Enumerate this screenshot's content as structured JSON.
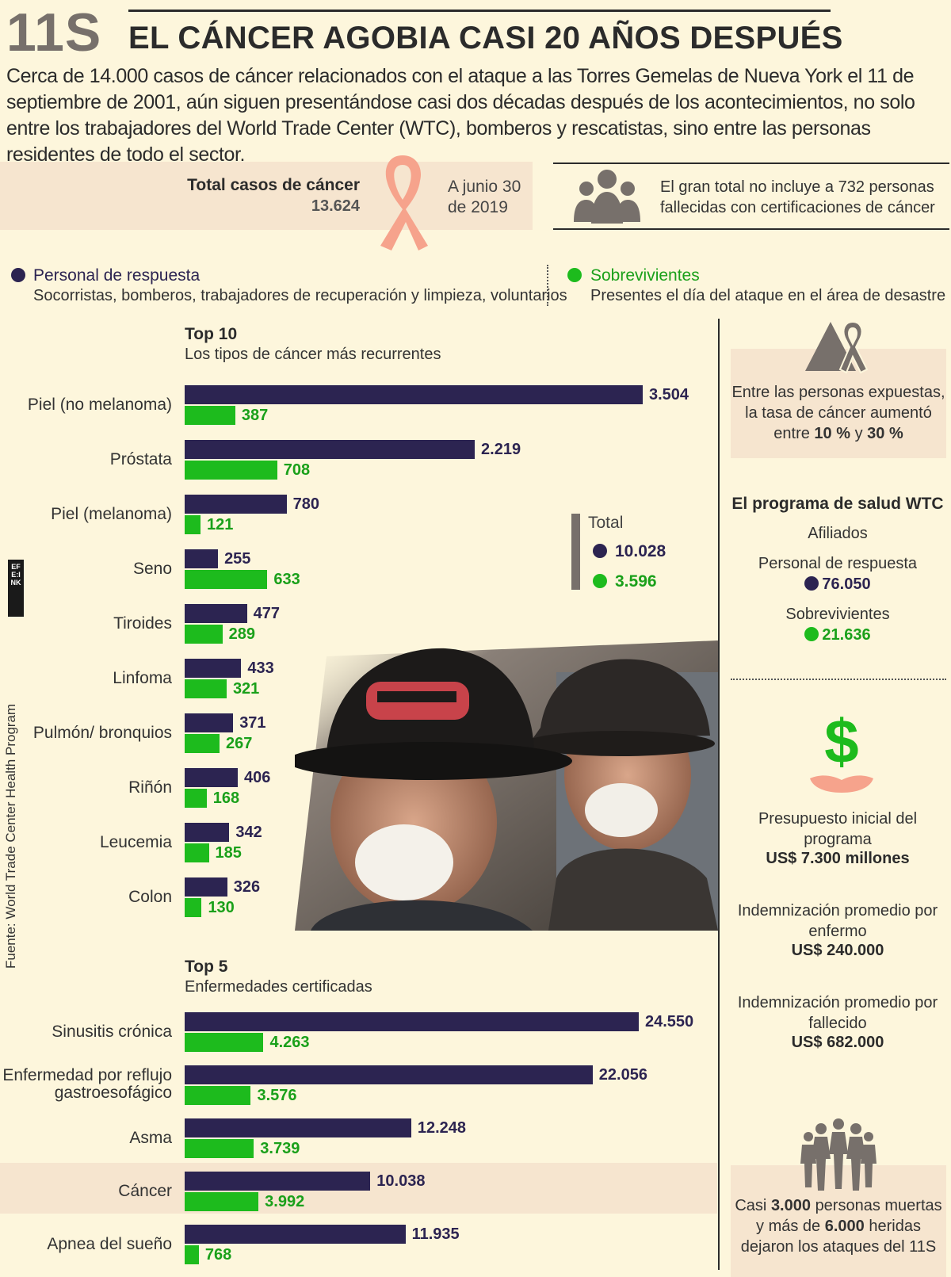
{
  "header": {
    "tag": "11S",
    "title": "EL CÁNCER AGOBIA CASI 20 AÑOS DESPUÉS",
    "intro": "Cerca de 14.000 casos de cáncer relacionados con el ataque a las Torres Gemelas de Nueva York el 11 de septiembre de 2001, aún siguen presentándose casi dos décadas después de los acontecimientos, no solo entre los trabajadores del World Trade Center (WTC), bomberos y rescatistas, sino entre las personas residentes de todo el sector."
  },
  "summary": {
    "total_label": "Total casos de cáncer",
    "total_value": "13.624",
    "date_line1": "A junio 30",
    "date_line2": "de 2019",
    "note": "El gran total no incluye a 732 personas fallecidas con certificaciones de cáncer"
  },
  "legend": {
    "responders": {
      "title": "Personal de respuesta",
      "desc": "Socorristas, bomberos, trabajadores de recuperación y limpieza, voluntarios"
    },
    "survivors": {
      "title": "Sobrevivientes",
      "desc": "Presentes el día del ataque en el área de desastre"
    }
  },
  "top10": {
    "title": "Top 10",
    "subtitle": "Los tipos de cáncer más recurrentes",
    "totals_label": "Total",
    "total_responders": "10.028",
    "total_survivors": "3.596"
  },
  "top5": {
    "title": "Top 5",
    "subtitle": "Enfermedades certificadas"
  },
  "chart_data": [
    {
      "type": "bar",
      "orientation": "horizontal",
      "title": "Top 10 - Los tipos de cáncer más recurrentes",
      "categories": [
        "Piel (no melanoma)",
        "Próstata",
        "Piel (melanoma)",
        "Seno",
        "Tiroides",
        "Linfoma",
        "Pulmón/ bronquios",
        "Riñón",
        "Leucemia",
        "Colon"
      ],
      "series": [
        {
          "name": "Personal de respuesta",
          "color": "#2c2451",
          "values": [
            3504,
            2219,
            780,
            255,
            477,
            433,
            371,
            406,
            342,
            326
          ],
          "labels": [
            "3.504",
            "2.219",
            "780",
            "255",
            "477",
            "433",
            "371",
            "406",
            "342",
            "326"
          ]
        },
        {
          "name": "Sobrevivientes",
          "color": "#1dbb1d",
          "values": [
            387,
            708,
            121,
            633,
            289,
            321,
            267,
            168,
            185,
            130
          ],
          "labels": [
            "387",
            "708",
            "121",
            "633",
            "289",
            "321",
            "267",
            "168",
            "185",
            "130"
          ]
        }
      ],
      "xlim": [
        0,
        3900
      ]
    },
    {
      "type": "bar",
      "orientation": "horizontal",
      "title": "Top 5 - Enfermedades certificadas",
      "categories": [
        "Sinusitis crónica",
        "Enfermedad por reflujo gastroesofágico",
        "Asma",
        "Cáncer",
        "Apnea del sueño"
      ],
      "series": [
        {
          "name": "Personal de respuesta",
          "color": "#2c2451",
          "values": [
            24550,
            22056,
            12248,
            10038,
            11935
          ],
          "labels": [
            "24.550",
            "22.056",
            "12.248",
            "10.038",
            "11.935"
          ]
        },
        {
          "name": "Sobrevivientes",
          "color": "#1dbb1d",
          "values": [
            4263,
            3576,
            3739,
            3992,
            768
          ],
          "labels": [
            "4.263",
            "3.576",
            "3.739",
            "3.992",
            "768"
          ]
        }
      ],
      "xlim": [
        0,
        27300
      ]
    }
  ],
  "sidebar": {
    "rate_text_1": "Entre las personas expuestas, la tasa de cáncer aumentó entre",
    "rate_low": "10 %",
    "rate_mid": "y",
    "rate_high": "30 %",
    "program_title": "El programa de salud WTC",
    "program_affiliates": "Afiliados",
    "program_responders_label": "Personal de respuesta",
    "program_responders_value": "76.050",
    "program_survivors_label": "Sobrevivientes",
    "program_survivors_value": "21.636",
    "budget_label": "Presupuesto inicial del programa",
    "budget_value": "US$ 7.300 millones",
    "sick_label": "Indemnización promedio por enfermo",
    "sick_value": "US$ 240.000",
    "dead_label": "Indemnización promedio por fallecido",
    "dead_value": "US$ 682.000",
    "victims_pre": "Casi",
    "victims_dead": "3.000",
    "victims_mid": "personas muertas y más de",
    "victims_hurt": "6.000",
    "victims_post": "heridas dejaron los ataques del 11S"
  },
  "source": "Fuente: World Trade Center Health Program",
  "logo_text": "EFE:INK",
  "colors": {
    "responders": "#2c2451",
    "survivors": "#1dbb1d",
    "highlight": "#f6e5cf",
    "background": "#fdf6dc"
  }
}
